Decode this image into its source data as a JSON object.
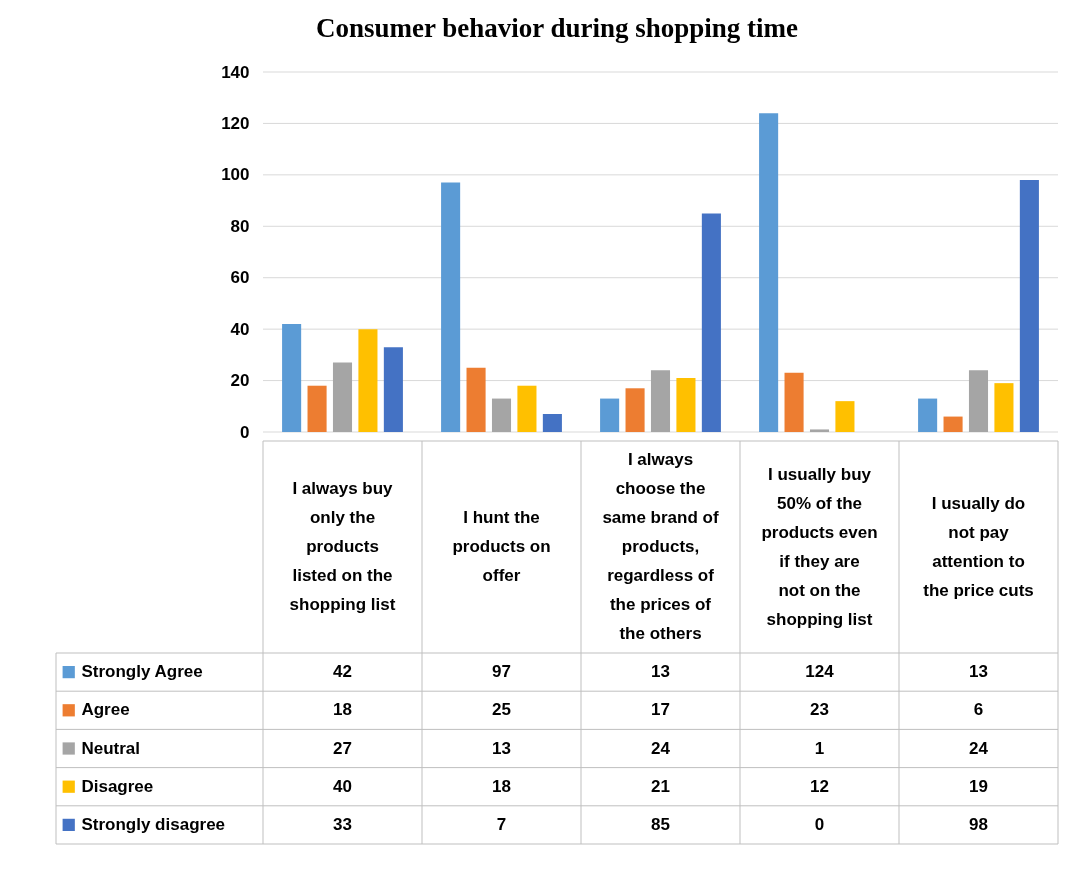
{
  "chart_data": {
    "type": "bar",
    "title": "Consumer behavior during shopping time",
    "categories": [
      "I always buy only the products listed on the shopping list",
      "I hunt the products on offer",
      "I always choose the same brand of products, regardless of the prices of the others",
      "I usually buy 50% of the products even if they are not on the shopping list",
      "I usually do not pay attention to the price cuts"
    ],
    "series": [
      {
        "name": "Strongly Agree",
        "color": "#5b9bd5",
        "values": [
          42,
          97,
          13,
          124,
          13
        ]
      },
      {
        "name": "Agree",
        "color": "#ed7d31",
        "values": [
          18,
          25,
          17,
          23,
          6
        ]
      },
      {
        "name": "Neutral",
        "color": "#a5a5a5",
        "values": [
          27,
          13,
          24,
          1,
          24
        ]
      },
      {
        "name": "Disagree",
        "color": "#ffc000",
        "values": [
          40,
          18,
          21,
          12,
          19
        ]
      },
      {
        "name": "Strongly disagree",
        "color": "#4472c4",
        "values": [
          33,
          7,
          85,
          0,
          98
        ]
      }
    ],
    "ylim": [
      0,
      140
    ],
    "yticks": [
      0,
      20,
      40,
      60,
      80,
      100,
      120,
      140
    ],
    "grid": "y",
    "legend": "bottom left",
    "data_labels": true
  }
}
